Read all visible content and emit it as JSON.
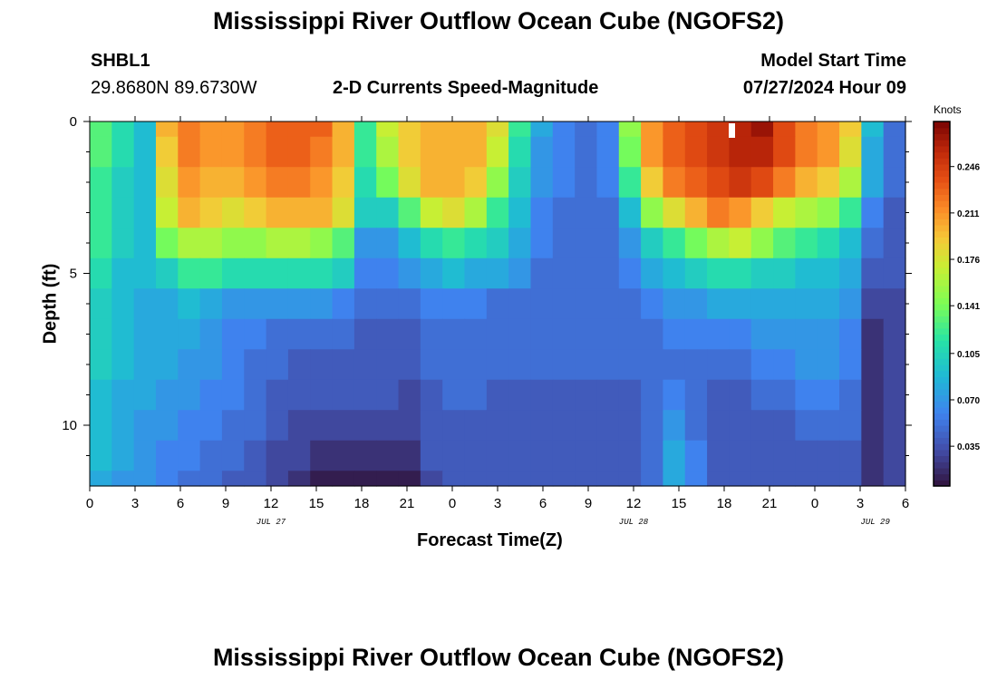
{
  "header": {
    "title": "Mississippi River Outflow Ocean Cube (NGOFS2)",
    "station_id": "SHBL1",
    "station_coords": "29.8680N  89.6730W",
    "subtitle": "2-D Currents Speed-Magnitude",
    "model_start_label": "Model Start Time",
    "model_start_value": "07/27/2024 Hour 09"
  },
  "footer": {
    "title": "Mississippi River Outflow Ocean Cube (NGOFS2)"
  },
  "chart_data": {
    "type": "heatmap",
    "title": "2-D Currents Speed-Magnitude",
    "xlabel": "Forecast Time(Z)",
    "ylabel": "Depth (ft)",
    "x_range_hours": [
      0,
      54
    ],
    "y_range_ft": [
      0,
      12
    ],
    "x_tick_values_hours": [
      0,
      3,
      6,
      9,
      12,
      15,
      18,
      21,
      24,
      27,
      30,
      33,
      36,
      39,
      42,
      45,
      48,
      51,
      54
    ],
    "x_tick_labels": [
      "0",
      "3",
      "6",
      "9",
      "12",
      "15",
      "18",
      "21",
      "0",
      "3",
      "6",
      "9",
      "12",
      "15",
      "18",
      "21",
      "0",
      "3",
      "6"
    ],
    "y_tick_values": [
      0,
      5,
      10
    ],
    "y_tick_labels": [
      "0",
      "5",
      "10"
    ],
    "date_labels": [
      {
        "text": "JUL 27",
        "hour": 12
      },
      {
        "text": "JUL 28",
        "hour": 36
      },
      {
        "text": "JUL 29",
        "hour": 52
      }
    ],
    "colorbar": {
      "units": "Knots",
      "range": [
        0.005,
        0.28
      ],
      "tick_values": [
        0.035,
        0.07,
        0.105,
        0.141,
        0.176,
        0.211,
        0.246
      ],
      "tick_labels": [
        "0.035",
        "0.070",
        "0.105",
        "0.141",
        "0.176",
        "0.211",
        "0.246"
      ]
    },
    "depth_levels_ft": [
      0,
      1,
      2,
      3,
      4,
      5,
      6,
      7,
      8,
      9,
      10,
      11,
      12
    ],
    "hours": [
      0,
      1.5,
      3,
      4.5,
      6,
      7.5,
      9,
      10.5,
      12,
      13.5,
      15,
      16.5,
      18,
      19.5,
      21,
      22.5,
      24,
      25.5,
      27,
      28.5,
      30,
      31.5,
      33,
      34.5,
      36,
      37.5,
      39,
      40.5,
      42,
      43.5,
      45,
      46.5,
      48,
      49.5,
      51,
      52.5,
      54
    ],
    "speed_knots": [
      [
        0.13,
        0.11,
        0.09,
        0.2,
        0.22,
        0.21,
        0.21,
        0.22,
        0.23,
        0.23,
        0.23,
        0.2,
        0.12,
        0.17,
        0.19,
        0.2,
        0.2,
        0.2,
        0.18,
        0.12,
        0.08,
        0.06,
        0.05,
        0.06,
        0.15,
        0.21,
        0.23,
        0.24,
        0.25,
        0.26,
        0.27,
        0.24,
        0.22,
        0.21,
        0.19,
        0.09,
        0.05
      ],
      [
        0.13,
        0.11,
        0.09,
        0.19,
        0.22,
        0.21,
        0.21,
        0.22,
        0.23,
        0.23,
        0.22,
        0.2,
        0.12,
        0.16,
        0.19,
        0.2,
        0.2,
        0.2,
        0.17,
        0.11,
        0.07,
        0.06,
        0.05,
        0.06,
        0.14,
        0.21,
        0.23,
        0.24,
        0.25,
        0.26,
        0.26,
        0.24,
        0.22,
        0.21,
        0.18,
        0.08,
        0.05
      ],
      [
        0.12,
        0.1,
        0.09,
        0.18,
        0.21,
        0.2,
        0.2,
        0.21,
        0.22,
        0.22,
        0.21,
        0.19,
        0.11,
        0.14,
        0.18,
        0.2,
        0.2,
        0.19,
        0.15,
        0.1,
        0.07,
        0.06,
        0.05,
        0.06,
        0.12,
        0.19,
        0.22,
        0.23,
        0.24,
        0.25,
        0.24,
        0.22,
        0.2,
        0.19,
        0.16,
        0.08,
        0.05
      ],
      [
        0.12,
        0.1,
        0.09,
        0.17,
        0.2,
        0.19,
        0.18,
        0.19,
        0.2,
        0.2,
        0.2,
        0.18,
        0.1,
        0.1,
        0.13,
        0.17,
        0.18,
        0.16,
        0.12,
        0.09,
        0.06,
        0.05,
        0.05,
        0.05,
        0.09,
        0.15,
        0.18,
        0.2,
        0.22,
        0.21,
        0.19,
        0.17,
        0.16,
        0.15,
        0.12,
        0.06,
        0.04
      ],
      [
        0.12,
        0.1,
        0.09,
        0.14,
        0.16,
        0.16,
        0.15,
        0.15,
        0.16,
        0.16,
        0.15,
        0.13,
        0.07,
        0.07,
        0.09,
        0.11,
        0.12,
        0.11,
        0.1,
        0.08,
        0.06,
        0.05,
        0.05,
        0.05,
        0.07,
        0.1,
        0.12,
        0.14,
        0.16,
        0.17,
        0.15,
        0.13,
        0.12,
        0.11,
        0.09,
        0.05,
        0.04
      ],
      [
        0.11,
        0.09,
        0.09,
        0.1,
        0.12,
        0.12,
        0.11,
        0.11,
        0.11,
        0.11,
        0.11,
        0.1,
        0.06,
        0.06,
        0.07,
        0.08,
        0.09,
        0.08,
        0.08,
        0.07,
        0.05,
        0.05,
        0.05,
        0.05,
        0.06,
        0.08,
        0.09,
        0.1,
        0.11,
        0.11,
        0.1,
        0.1,
        0.09,
        0.09,
        0.08,
        0.04,
        0.04
      ],
      [
        0.1,
        0.09,
        0.08,
        0.08,
        0.09,
        0.08,
        0.07,
        0.07,
        0.07,
        0.07,
        0.07,
        0.06,
        0.05,
        0.05,
        0.05,
        0.06,
        0.06,
        0.06,
        0.05,
        0.05,
        0.05,
        0.05,
        0.05,
        0.05,
        0.05,
        0.06,
        0.07,
        0.07,
        0.08,
        0.08,
        0.08,
        0.08,
        0.08,
        0.08,
        0.07,
        0.03,
        0.03
      ],
      [
        0.1,
        0.09,
        0.08,
        0.08,
        0.08,
        0.07,
        0.06,
        0.06,
        0.05,
        0.05,
        0.05,
        0.05,
        0.04,
        0.04,
        0.04,
        0.05,
        0.05,
        0.05,
        0.05,
        0.05,
        0.05,
        0.05,
        0.05,
        0.05,
        0.05,
        0.05,
        0.06,
        0.06,
        0.06,
        0.06,
        0.07,
        0.07,
        0.07,
        0.07,
        0.06,
        0.02,
        0.03
      ],
      [
        0.1,
        0.09,
        0.08,
        0.08,
        0.07,
        0.07,
        0.06,
        0.05,
        0.05,
        0.04,
        0.04,
        0.04,
        0.04,
        0.04,
        0.04,
        0.05,
        0.05,
        0.05,
        0.05,
        0.05,
        0.05,
        0.05,
        0.05,
        0.05,
        0.05,
        0.05,
        0.05,
        0.05,
        0.05,
        0.05,
        0.06,
        0.06,
        0.07,
        0.07,
        0.06,
        0.02,
        0.03
      ],
      [
        0.09,
        0.08,
        0.08,
        0.07,
        0.07,
        0.06,
        0.06,
        0.05,
        0.04,
        0.04,
        0.04,
        0.04,
        0.04,
        0.04,
        0.03,
        0.04,
        0.05,
        0.05,
        0.04,
        0.04,
        0.04,
        0.04,
        0.04,
        0.04,
        0.04,
        0.05,
        0.06,
        0.05,
        0.04,
        0.04,
        0.05,
        0.05,
        0.06,
        0.06,
        0.05,
        0.02,
        0.03
      ],
      [
        0.09,
        0.08,
        0.07,
        0.07,
        0.06,
        0.06,
        0.05,
        0.05,
        0.04,
        0.03,
        0.03,
        0.03,
        0.03,
        0.03,
        0.03,
        0.04,
        0.04,
        0.04,
        0.04,
        0.04,
        0.04,
        0.04,
        0.04,
        0.04,
        0.04,
        0.05,
        0.07,
        0.05,
        0.04,
        0.04,
        0.04,
        0.04,
        0.05,
        0.05,
        0.05,
        0.02,
        0.03
      ],
      [
        0.09,
        0.08,
        0.07,
        0.06,
        0.06,
        0.05,
        0.05,
        0.04,
        0.03,
        0.03,
        0.02,
        0.02,
        0.02,
        0.02,
        0.02,
        0.04,
        0.04,
        0.04,
        0.04,
        0.04,
        0.04,
        0.04,
        0.04,
        0.04,
        0.04,
        0.05,
        0.08,
        0.06,
        0.04,
        0.04,
        0.04,
        0.04,
        0.04,
        0.04,
        0.04,
        0.02,
        0.03
      ],
      [
        0.08,
        0.07,
        0.07,
        0.06,
        0.05,
        0.05,
        0.04,
        0.04,
        0.03,
        0.02,
        0.01,
        0.01,
        0.01,
        0.01,
        0.01,
        0.03,
        0.04,
        0.04,
        0.04,
        0.04,
        0.04,
        0.04,
        0.04,
        0.04,
        0.04,
        0.05,
        0.08,
        0.06,
        0.04,
        0.04,
        0.04,
        0.04,
        0.04,
        0.04,
        0.04,
        0.02,
        0.03
      ]
    ]
  }
}
